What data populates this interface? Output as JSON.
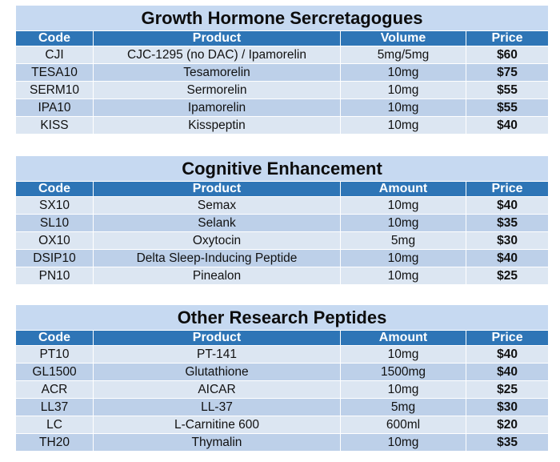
{
  "sections": [
    {
      "title": "Growth Hormone Sercretagogues",
      "headers": [
        "Code",
        "Product",
        "Volume",
        "Price"
      ],
      "rows": [
        [
          "CJI",
          "CJC-1295 (no DAC) / Ipamorelin",
          "5mg/5mg",
          "$60"
        ],
        [
          "TESA10",
          "Tesamorelin",
          "10mg",
          "$75"
        ],
        [
          "SERM10",
          "Sermorelin",
          "10mg",
          "$55"
        ],
        [
          "IPA10",
          "Ipamorelin",
          "10mg",
          "$55"
        ],
        [
          "KISS",
          "Kisspeptin",
          "10mg",
          "$40"
        ]
      ]
    },
    {
      "title": "Cognitive Enhancement",
      "headers": [
        "Code",
        "Product",
        "Amount",
        "Price"
      ],
      "rows": [
        [
          "SX10",
          "Semax",
          "10mg",
          "$40"
        ],
        [
          "SL10",
          "Selank",
          "10mg",
          "$35"
        ],
        [
          "OX10",
          "Oxytocin",
          "5mg",
          "$30"
        ],
        [
          "DSIP10",
          "Delta Sleep-Inducing Peptide",
          "10mg",
          "$40"
        ],
        [
          "PN10",
          "Pinealon",
          "10mg",
          "$25"
        ]
      ]
    },
    {
      "title": "Other Research Peptides",
      "headers": [
        "Code",
        "Product",
        "Amount",
        "Price"
      ],
      "rows": [
        [
          "PT10",
          "PT-141",
          "10mg",
          "$40"
        ],
        [
          "GL1500",
          "Glutathione",
          "1500mg",
          "$40"
        ],
        [
          "ACR",
          "AICAR",
          "10mg",
          "$25"
        ],
        [
          "LL37",
          "LL-37",
          "5mg",
          "$30"
        ],
        [
          "LC",
          "L-Carnitine 600",
          "600ml",
          "$20"
        ],
        [
          "TH20",
          "Thymalin",
          "10mg",
          "$35"
        ]
      ]
    }
  ]
}
